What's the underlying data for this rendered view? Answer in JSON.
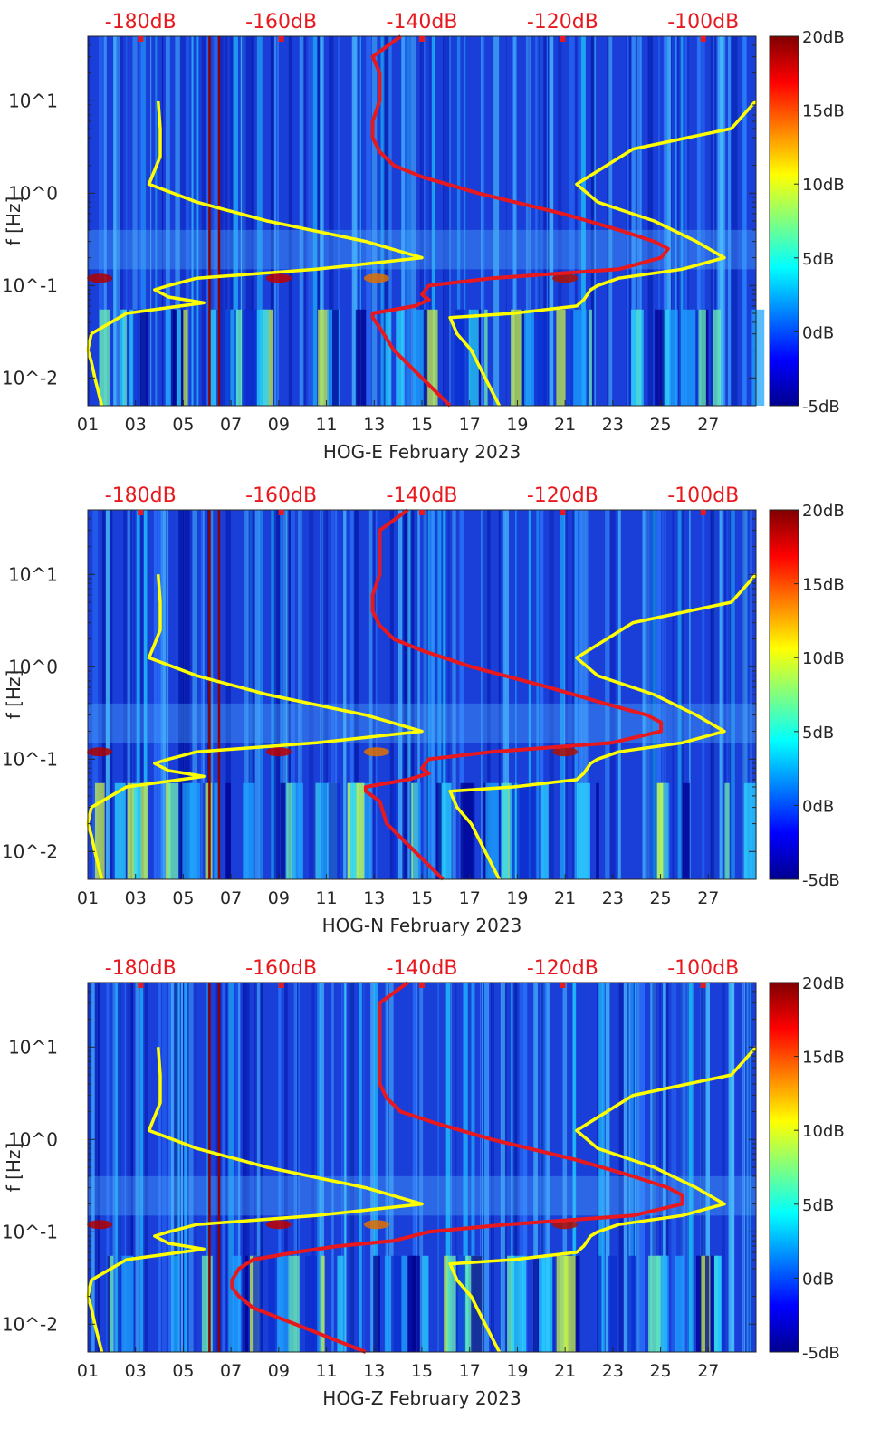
{
  "figure_title": "Spectrogram panels HOG-E / HOG-N / HOG-Z, February 2023",
  "chart_data": [
    {
      "type": "heatmap",
      "title": "HOG-E February 2023",
      "xlabel": "HOG-E February 2023",
      "ylabel": "f [Hz]",
      "x_ticks": [
        "01",
        "03",
        "05",
        "07",
        "09",
        "11",
        "13",
        "15",
        "17",
        "19",
        "21",
        "23",
        "25",
        "27"
      ],
      "x_range_days": [
        1,
        29
      ],
      "y_ticks": [
        "10^-2",
        "10^-1",
        "10^0",
        "10^1"
      ],
      "y_range_hz": [
        0.005,
        50
      ],
      "top_ticks": [
        "-180dB",
        "-160dB",
        "-140dB",
        "-120dB",
        "-100dB"
      ],
      "top_range_db": [
        -187.5,
        -92.5
      ],
      "colorbar": {
        "ticks": [
          "-5dB",
          "0dB",
          "5dB",
          "10dB",
          "15dB",
          "20dB"
        ],
        "range_db": [
          -5,
          20
        ]
      },
      "series": [
        {
          "name": "noise-model-low",
          "color": "#ffff00",
          "f_hz": [
            10,
            5,
            2.5,
            1.25,
            0.8,
            0.5,
            0.3,
            0.2,
            0.15,
            0.12,
            0.1,
            0.09,
            0.075,
            0.065,
            0.05,
            0.03,
            0.02,
            0.015,
            0.01,
            0.005
          ],
          "db": [
            -177.5,
            -177.2,
            -177.2,
            -178.8,
            -172,
            -162,
            -148,
            -140,
            -155,
            -172,
            -176,
            -178,
            -176,
            -171,
            -182,
            -187,
            -187.5,
            -187,
            -186.5,
            -185.5
          ]
        },
        {
          "name": "noise-model-high",
          "color": "#ffff00",
          "f_hz": [
            10,
            5,
            3,
            1.25,
            0.8,
            0.5,
            0.3,
            0.2,
            0.15,
            0.12,
            0.1,
            0.09,
            0.07,
            0.06,
            0.05,
            0.045,
            0.03,
            0.02,
            0.01,
            0.005
          ],
          "db": [
            -92.5,
            -96,
            -110,
            -118,
            -115,
            -107,
            -101,
            -97,
            -103,
            -112,
            -115,
            -116,
            -117,
            -118,
            -127,
            -136,
            -135,
            -133,
            -131,
            -129
          ]
        },
        {
          "name": "psd-curve",
          "color": "#e8191e",
          "f_hz": [
            50,
            30,
            20,
            10,
            6,
            4,
            2.8,
            2,
            1.5,
            1,
            0.6,
            0.4,
            0.3,
            0.25,
            0.2,
            0.15,
            0.12,
            0.1,
            0.08,
            0.07,
            0.06,
            0.05,
            0.045,
            0.035,
            0.02,
            0.01,
            0.005
          ],
          "db": [
            -143,
            -147,
            -146,
            -146,
            -147,
            -147,
            -146,
            -144,
            -140,
            -132,
            -120,
            -112,
            -107,
            -105,
            -106,
            -112,
            -130,
            -139,
            -140,
            -139,
            -141,
            -147,
            -147,
            -146,
            -144,
            -140,
            -136
          ]
        }
      ]
    },
    {
      "type": "heatmap",
      "title": "HOG-N February 2023",
      "xlabel": "HOG-N February 2023",
      "ylabel": "f [Hz]",
      "x_ticks": [
        "01",
        "03",
        "05",
        "07",
        "09",
        "11",
        "13",
        "15",
        "17",
        "19",
        "21",
        "23",
        "25",
        "27"
      ],
      "x_range_days": [
        1,
        29
      ],
      "y_ticks": [
        "10^-2",
        "10^-1",
        "10^0",
        "10^1"
      ],
      "y_range_hz": [
        0.005,
        50
      ],
      "top_ticks": [
        "-180dB",
        "-160dB",
        "-140dB",
        "-120dB",
        "-100dB"
      ],
      "top_range_db": [
        -187.5,
        -92.5
      ],
      "colorbar": {
        "ticks": [
          "-5dB",
          "0dB",
          "5dB",
          "10dB",
          "15dB",
          "20dB"
        ],
        "range_db": [
          -5,
          20
        ]
      },
      "series": [
        {
          "name": "noise-model-low",
          "color": "#ffff00",
          "f_hz": [
            10,
            5,
            2.5,
            1.25,
            0.8,
            0.5,
            0.3,
            0.2,
            0.15,
            0.12,
            0.1,
            0.09,
            0.075,
            0.065,
            0.05,
            0.03,
            0.02,
            0.015,
            0.01,
            0.005
          ],
          "db": [
            -177.5,
            -177.2,
            -177.2,
            -178.8,
            -172,
            -162,
            -148,
            -140,
            -155,
            -172,
            -176,
            -178,
            -176,
            -171,
            -182,
            -187,
            -187.5,
            -187,
            -186.5,
            -185.5
          ]
        },
        {
          "name": "noise-model-high",
          "color": "#ffff00",
          "f_hz": [
            10,
            5,
            3,
            1.25,
            0.8,
            0.5,
            0.3,
            0.2,
            0.15,
            0.12,
            0.1,
            0.09,
            0.07,
            0.06,
            0.05,
            0.045,
            0.03,
            0.02,
            0.01,
            0.005
          ],
          "db": [
            -92.5,
            -96,
            -110,
            -118,
            -115,
            -107,
            -101,
            -97,
            -103,
            -112,
            -115,
            -116,
            -117,
            -118,
            -127,
            -136,
            -135,
            -133,
            -131,
            -129
          ]
        },
        {
          "name": "psd-curve",
          "color": "#e8191e",
          "f_hz": [
            50,
            30,
            20,
            10,
            6,
            4,
            2.8,
            2,
            1.5,
            1,
            0.6,
            0.4,
            0.3,
            0.25,
            0.2,
            0.15,
            0.12,
            0.1,
            0.08,
            0.07,
            0.06,
            0.05,
            0.045,
            0.035,
            0.02,
            0.01,
            0.005
          ],
          "db": [
            -142,
            -146,
            -146,
            -146,
            -147,
            -147,
            -146,
            -144,
            -140,
            -133,
            -122,
            -114,
            -108,
            -106,
            -106,
            -113,
            -130,
            -139,
            -140,
            -139,
            -142,
            -148,
            -148,
            -146,
            -145,
            -141,
            -137
          ]
        }
      ]
    },
    {
      "type": "heatmap",
      "title": "HOG-Z February 2023",
      "xlabel": "HOG-Z February 2023",
      "ylabel": "f [Hz]",
      "x_ticks": [
        "01",
        "03",
        "05",
        "07",
        "09",
        "11",
        "13",
        "15",
        "17",
        "19",
        "21",
        "23",
        "25",
        "27"
      ],
      "x_range_days": [
        1,
        29
      ],
      "y_ticks": [
        "10^-2",
        "10^-1",
        "10^0",
        "10^1"
      ],
      "y_range_hz": [
        0.005,
        50
      ],
      "top_ticks": [
        "-180dB",
        "-160dB",
        "-140dB",
        "-120dB",
        "-100dB"
      ],
      "top_range_db": [
        -187.5,
        -92.5
      ],
      "colorbar": {
        "ticks": [
          "-5dB",
          "0dB",
          "5dB",
          "10dB",
          "15dB",
          "20dB"
        ],
        "range_db": [
          -5,
          20
        ]
      },
      "series": [
        {
          "name": "noise-model-low",
          "color": "#ffff00",
          "f_hz": [
            10,
            5,
            2.5,
            1.25,
            0.8,
            0.5,
            0.3,
            0.2,
            0.15,
            0.12,
            0.1,
            0.09,
            0.075,
            0.065,
            0.05,
            0.03,
            0.02,
            0.015,
            0.01,
            0.005
          ],
          "db": [
            -177.5,
            -177.2,
            -177.2,
            -178.8,
            -172,
            -162,
            -148,
            -140,
            -155,
            -172,
            -176,
            -178,
            -176,
            -171,
            -182,
            -187,
            -187.5,
            -187,
            -186.5,
            -185.5
          ]
        },
        {
          "name": "noise-model-high",
          "color": "#ffff00",
          "f_hz": [
            10,
            5,
            3,
            1.25,
            0.8,
            0.5,
            0.3,
            0.2,
            0.15,
            0.12,
            0.1,
            0.09,
            0.07,
            0.06,
            0.05,
            0.045,
            0.03,
            0.02,
            0.01,
            0.005
          ],
          "db": [
            -92.5,
            -96,
            -110,
            -118,
            -115,
            -107,
            -101,
            -97,
            -103,
            -112,
            -115,
            -116,
            -117,
            -118,
            -127,
            -136,
            -135,
            -133,
            -131,
            -129
          ]
        },
        {
          "name": "psd-curve",
          "color": "#e8191e",
          "f_hz": [
            50,
            30,
            20,
            10,
            6,
            4,
            2.8,
            2,
            1.5,
            1,
            0.6,
            0.4,
            0.3,
            0.25,
            0.2,
            0.15,
            0.12,
            0.1,
            0.08,
            0.07,
            0.06,
            0.05,
            0.04,
            0.03,
            0.025,
            0.02,
            0.015,
            0.01,
            0.005
          ],
          "db": [
            -142,
            -146,
            -146,
            -146,
            -146,
            -146,
            -145,
            -143,
            -138,
            -130,
            -118,
            -110,
            -105,
            -103,
            -103,
            -110,
            -128,
            -139,
            -144,
            -152,
            -158,
            -164,
            -166,
            -167,
            -167,
            -166,
            -164,
            -158,
            -148
          ]
        }
      ]
    }
  ]
}
